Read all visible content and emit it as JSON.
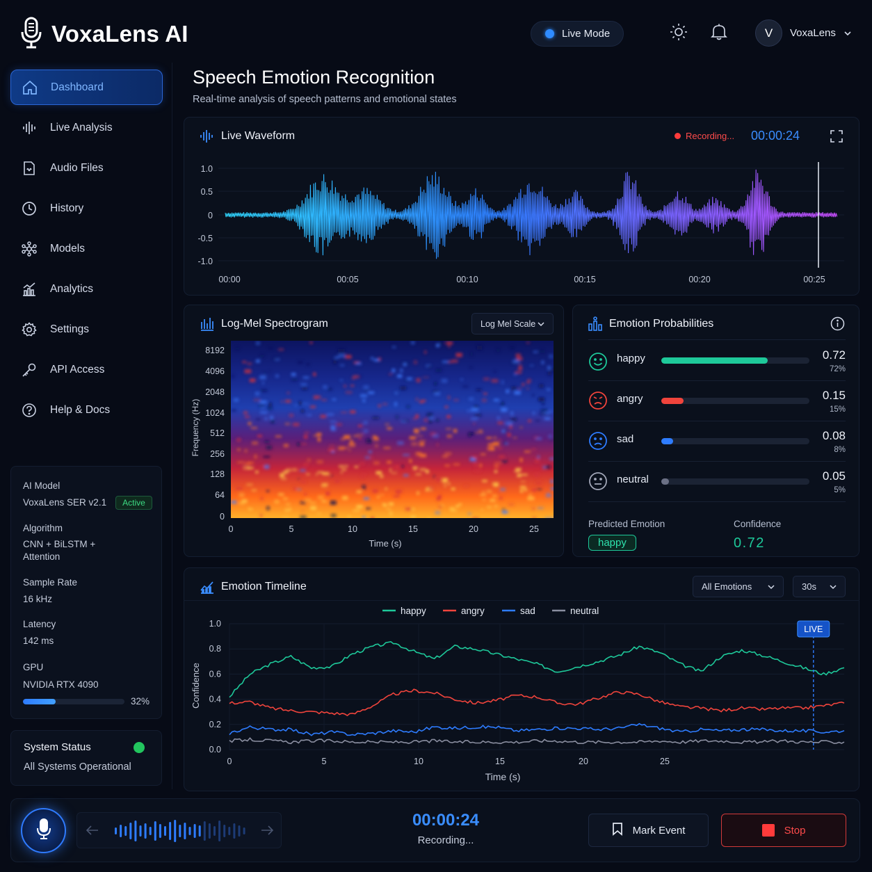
{
  "app": {
    "name": "VoxaLens AI",
    "live_mode_label": "Live Mode",
    "user_initial": "V",
    "user_name": "VoxaLens"
  },
  "sidebar": {
    "items": [
      {
        "label": "Dashboard",
        "icon": "home-icon"
      },
      {
        "label": "Live Analysis",
        "icon": "waveform-icon"
      },
      {
        "label": "Audio Files",
        "icon": "audio-file-icon"
      },
      {
        "label": "History",
        "icon": "clock-icon"
      },
      {
        "label": "Models",
        "icon": "model-icon"
      },
      {
        "label": "Analytics",
        "icon": "analytics-icon"
      },
      {
        "label": "Settings",
        "icon": "gear-icon"
      },
      {
        "label": "API Access",
        "icon": "key-icon"
      },
      {
        "label": "Help & Docs",
        "icon": "help-icon"
      }
    ],
    "info": {
      "model_label": "AI Model",
      "model_value": "VoxaLens SER v2.1",
      "model_badge": "Active",
      "algorithm_label": "Algorithm",
      "algorithm_line1": "CNN + BiLSTM +",
      "algorithm_line2": "Attention",
      "sample_rate_label": "Sample Rate",
      "sample_rate_value": "16 kHz",
      "latency_label": "Latency",
      "latency_value": "142 ms",
      "gpu_label": "GPU",
      "gpu_value": "NVIDIA RTX 4090",
      "gpu_usage_text": "32%",
      "gpu_usage": 0.32
    },
    "status": {
      "title": "System Status",
      "text": "All Systems Operational",
      "color": "#22c55e"
    }
  },
  "page": {
    "title": "Speech Emotion Recognition",
    "subtitle": "Real-time analysis of speech patterns and emotional states"
  },
  "waveform": {
    "title": "Live Waveform",
    "recording_label": "Recording...",
    "timer": "00:00:24",
    "y_ticks": [
      "1.0",
      "0.5",
      "0",
      "-0.5",
      "-1.0"
    ],
    "x_ticks": [
      "00:00",
      "00:05",
      "00:10",
      "00:15",
      "00:20",
      "00:25"
    ]
  },
  "spectrogram": {
    "title": "Log-Mel Spectrogram",
    "scale_select": "Log Mel Scale",
    "ylabel": "Frequency (Hz)",
    "xlabel": "Time (s)",
    "y_ticks": [
      "8192",
      "4096",
      "2048",
      "1024",
      "512",
      "256",
      "128",
      "64",
      "0"
    ],
    "x_ticks": [
      "0",
      "5",
      "10",
      "15",
      "20",
      "25"
    ]
  },
  "probabilities": {
    "title": "Emotion Probabilities",
    "emotions": [
      {
        "name": "happy",
        "value": "0.72",
        "pct": "72%",
        "fraction": 0.72,
        "color": "#1ec99a",
        "icon": "smile-icon"
      },
      {
        "name": "angry",
        "value": "0.15",
        "pct": "15%",
        "fraction": 0.15,
        "color": "#f0443c",
        "icon": "angry-face-icon"
      },
      {
        "name": "sad",
        "value": "0.08",
        "pct": "8%",
        "fraction": 0.08,
        "color": "#2e7cff",
        "icon": "sad-face-icon"
      },
      {
        "name": "neutral",
        "value": "0.05",
        "pct": "5%",
        "fraction": 0.05,
        "color": "#6b7085",
        "icon": "neutral-face-icon"
      }
    ],
    "predicted_label": "Predicted Emotion",
    "predicted_value": "happy",
    "confidence_label": "Confidence",
    "confidence_value": "0.72"
  },
  "timeline": {
    "title": "Emotion Timeline",
    "filter_select": "All Emotions",
    "window_select": "30s",
    "live_label": "LIVE"
  },
  "chart_data": {
    "type": "line",
    "xlabel": "Time (s)",
    "ylabel": "Confidence",
    "xlim": [
      0,
      30
    ],
    "ylim": [
      0,
      1
    ],
    "x_ticks": [
      "0",
      "5",
      "10",
      "15",
      "20",
      "25"
    ],
    "y_ticks": [
      "1.0",
      "0.8",
      "0.6",
      "0.4",
      "0.2",
      "0.0"
    ],
    "legend_position": "top-center",
    "x": [
      0,
      1,
      2,
      3,
      4,
      5,
      6,
      7,
      8,
      9,
      10,
      11,
      12,
      13,
      14,
      15,
      16,
      17,
      18,
      19,
      20,
      21,
      22,
      23,
      24,
      25,
      26,
      27,
      28,
      29,
      30
    ],
    "series": [
      {
        "name": "happy",
        "color": "#1ec99a",
        "values": [
          0.42,
          0.6,
          0.68,
          0.74,
          0.65,
          0.66,
          0.76,
          0.82,
          0.85,
          0.78,
          0.72,
          0.82,
          0.8,
          0.76,
          0.72,
          0.68,
          0.62,
          0.66,
          0.7,
          0.75,
          0.82,
          0.77,
          0.68,
          0.62,
          0.74,
          0.79,
          0.75,
          0.7,
          0.65,
          0.6,
          0.65
        ]
      },
      {
        "name": "angry",
        "color": "#f0443c",
        "values": [
          0.37,
          0.38,
          0.33,
          0.31,
          0.3,
          0.29,
          0.28,
          0.35,
          0.44,
          0.47,
          0.45,
          0.4,
          0.37,
          0.39,
          0.43,
          0.42,
          0.37,
          0.36,
          0.41,
          0.46,
          0.44,
          0.38,
          0.34,
          0.33,
          0.31,
          0.33,
          0.32,
          0.33,
          0.33,
          0.35,
          0.37
        ]
      },
      {
        "name": "sad",
        "color": "#2e7cff",
        "values": [
          0.13,
          0.18,
          0.16,
          0.16,
          0.12,
          0.14,
          0.12,
          0.13,
          0.15,
          0.14,
          0.18,
          0.17,
          0.18,
          0.18,
          0.15,
          0.16,
          0.17,
          0.17,
          0.16,
          0.17,
          0.2,
          0.17,
          0.14,
          0.16,
          0.15,
          0.16,
          0.16,
          0.15,
          0.15,
          0.14,
          0.15
        ]
      },
      {
        "name": "neutral",
        "color": "#8a8ea0",
        "values": [
          0.07,
          0.08,
          0.07,
          0.06,
          0.07,
          0.07,
          0.06,
          0.06,
          0.06,
          0.06,
          0.07,
          0.06,
          0.06,
          0.06,
          0.06,
          0.07,
          0.07,
          0.06,
          0.06,
          0.06,
          0.06,
          0.07,
          0.06,
          0.07,
          0.07,
          0.06,
          0.06,
          0.07,
          0.06,
          0.06,
          0.06
        ]
      }
    ],
    "live_marker_x": 28.5
  },
  "bottom": {
    "timer": "00:00:24",
    "status": "Recording...",
    "mark_label": "Mark Event",
    "stop_label": "Stop"
  }
}
